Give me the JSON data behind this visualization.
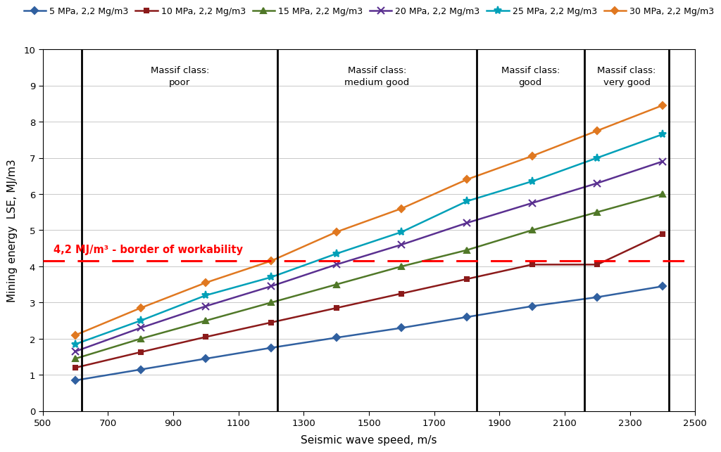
{
  "x_values": [
    600,
    800,
    1000,
    1200,
    1400,
    1600,
    1800,
    2000,
    2200,
    2400
  ],
  "series": [
    {
      "label": "5 MPa, 2,2 Mg/m3",
      "color": "#3060a0",
      "marker": "D",
      "markersize": 5,
      "y": [
        0.85,
        1.15,
        1.45,
        1.75,
        2.03,
        2.3,
        2.6,
        2.9,
        3.15,
        3.45
      ]
    },
    {
      "label": "10 MPa, 2,2 Mg/m3",
      "color": "#8b1a1a",
      "marker": "s",
      "markersize": 5,
      "y": [
        1.2,
        1.63,
        2.05,
        2.45,
        2.85,
        3.25,
        3.65,
        4.05,
        4.05,
        4.9
      ]
    },
    {
      "label": "15 MPa, 2,2 Mg/m3",
      "color": "#507828",
      "marker": "^",
      "markersize": 6,
      "y": [
        1.45,
        2.0,
        2.5,
        3.0,
        3.5,
        4.0,
        4.45,
        5.0,
        5.5,
        6.0
      ]
    },
    {
      "label": "20 MPa, 2,2 Mg/m3",
      "color": "#5a3090",
      "marker": "x",
      "markersize": 7,
      "y": [
        1.65,
        2.3,
        2.9,
        3.45,
        4.05,
        4.6,
        5.2,
        5.75,
        6.3,
        6.9
      ]
    },
    {
      "label": "25 MPa, 2,2 Mg/m3",
      "color": "#00a0b8",
      "marker": "*",
      "markersize": 8,
      "y": [
        1.85,
        2.5,
        3.2,
        3.7,
        4.35,
        4.95,
        5.8,
        6.35,
        7.0,
        7.65
      ]
    },
    {
      "label": "30 MPa, 2,2 Mg/m3",
      "color": "#e07820",
      "marker": "D",
      "markersize": 5,
      "y": [
        2.1,
        2.85,
        3.55,
        4.15,
        4.95,
        5.6,
        6.4,
        7.05,
        7.75,
        8.45
      ]
    }
  ],
  "vertical_lines": [
    620,
    1220,
    1830,
    2160,
    2420
  ],
  "massif_classes": [
    {
      "x": 920,
      "label": "Massif class:\npoor"
    },
    {
      "x": 1525,
      "label": "Massif class:\nmedium good"
    },
    {
      "x": 1995,
      "label": "Massif class:\ngood"
    },
    {
      "x": 2290,
      "label": "Massif class:\nvery good"
    }
  ],
  "workability_line": 4.15,
  "workability_label": "4,2 MJ/m³ - border of workability",
  "xlabel": "Seismic wave speed, m/s",
  "ylabel": "Mining energy  LSE, MJ/m3",
  "xlim": [
    500,
    2500
  ],
  "ylim": [
    0,
    10
  ],
  "xticks": [
    500,
    700,
    900,
    1100,
    1300,
    1500,
    1700,
    1900,
    2100,
    2300,
    2500
  ],
  "yticks": [
    0,
    1,
    2,
    3,
    4,
    5,
    6,
    7,
    8,
    9,
    10
  ],
  "background_color": "#ffffff",
  "grid_color": "#c8c8c8"
}
